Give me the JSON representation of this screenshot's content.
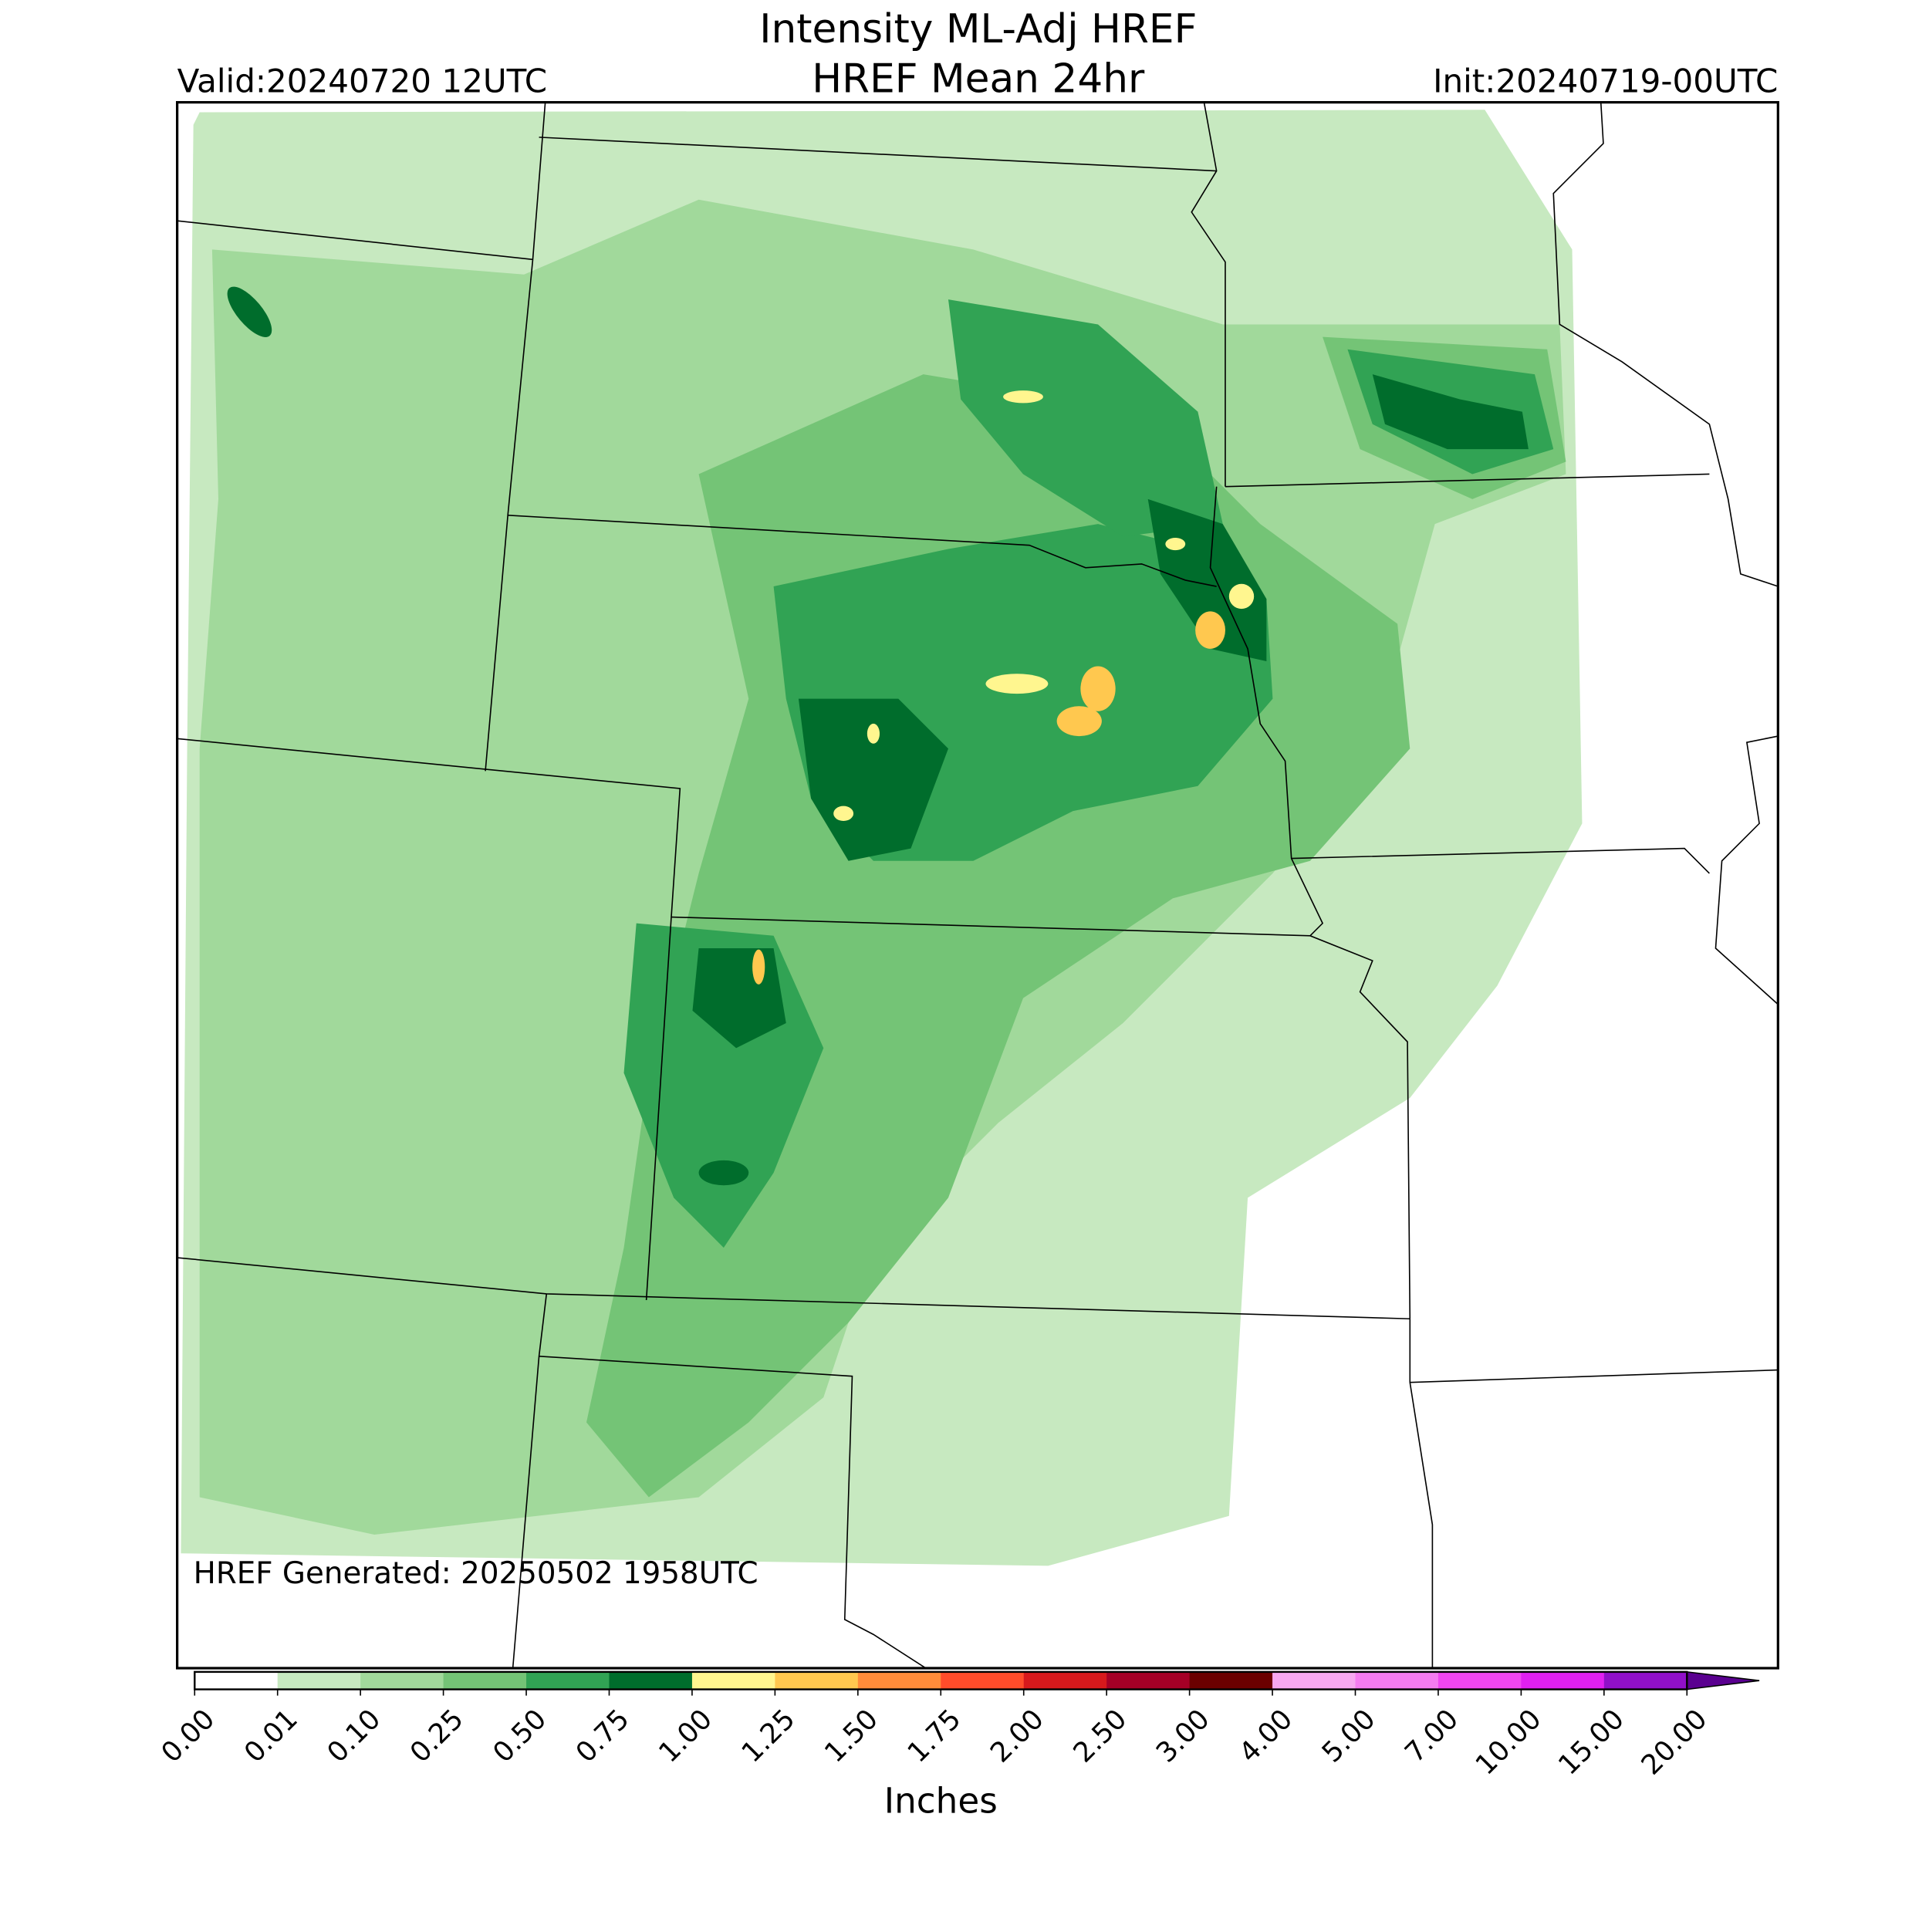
{
  "header": {
    "title": "Intensity ML-Adj HREF",
    "subtitle": "HREF Mean 24hr",
    "valid": "Valid:20240720 12UTC",
    "init": "Init:20240719-00UTC"
  },
  "footer": {
    "generated": "HREF Generated: 20250502 1958UTC"
  },
  "colorbar": {
    "label": "Inches",
    "ticks": [
      "0.00",
      "0.01",
      "0.10",
      "0.25",
      "0.50",
      "0.75",
      "1.00",
      "1.25",
      "1.50",
      "1.75",
      "2.00",
      "2.50",
      "3.00",
      "4.00",
      "5.00",
      "7.00",
      "10.00",
      "15.00",
      "20.00"
    ],
    "colors": [
      "#ffffff",
      "#c7e9c0",
      "#a1d99b",
      "#74c476",
      "#31a354",
      "#006d2c",
      "#fff68f",
      "#ffc84f",
      "#ff8c3a",
      "#ff4c2a",
      "#d7191c",
      "#a50026",
      "#6b0000",
      "#f7a8f0",
      "#f57cf0",
      "#f046f0",
      "#e020f0",
      "#9010c8"
    ],
    "extend_color": "#5a0090"
  }
}
